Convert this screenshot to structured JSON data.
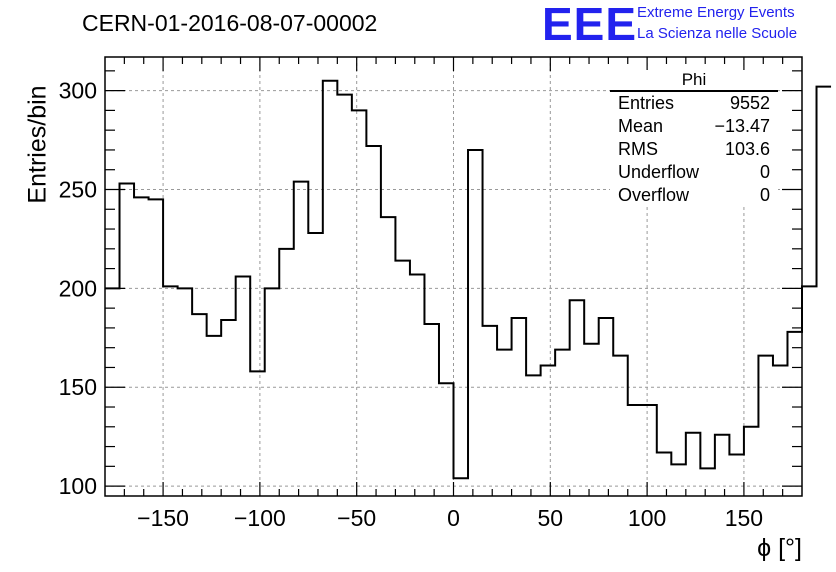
{
  "chart_data": {
    "type": "histogram",
    "title": "CERN-01-2016-08-07-00002",
    "xlabel": "ϕ [°]",
    "ylabel": "Entries/bin",
    "xlim": [
      -180,
      180
    ],
    "ylim": [
      95,
      317
    ],
    "x_ticks": [
      -150,
      -100,
      -50,
      0,
      50,
      100,
      150
    ],
    "x_tick_labels": [
      "−150",
      "−100",
      "−50",
      "0",
      "50",
      "100",
      "150"
    ],
    "y_ticks": [
      100,
      150,
      200,
      250,
      300
    ],
    "y_tick_labels": [
      "100",
      "150",
      "200",
      "250",
      "300"
    ],
    "grid": true,
    "bin_edges_start": -180,
    "bin_width": 7.5,
    "values": [
      200,
      253,
      246,
      245,
      201,
      200,
      187,
      176,
      184,
      206,
      158,
      200,
      220,
      254,
      228,
      305,
      298,
      290,
      272,
      236,
      214,
      207,
      182,
      152,
      104,
      270,
      181,
      169,
      185,
      156,
      161,
      169,
      194,
      172,
      185,
      166,
      141,
      141,
      117,
      111,
      127,
      109,
      126,
      116,
      130,
      166,
      161,
      178,
      201,
      302
    ],
    "stats": {
      "name": "Phi",
      "rows": [
        {
          "label": "Entries",
          "value": "9552"
        },
        {
          "label": "Mean",
          "value": "−13.47"
        },
        {
          "label": "RMS",
          "value": "103.6"
        },
        {
          "label": "Underflow",
          "value": "0"
        },
        {
          "label": "Overflow",
          "value": "0"
        }
      ]
    }
  },
  "logo": {
    "mark": "EEE",
    "line1": "Extreme Energy Events",
    "line2": "La Scienza nelle Scuole",
    "color": "#2222ee"
  }
}
